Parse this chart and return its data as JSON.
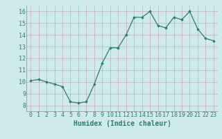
{
  "x": [
    0,
    1,
    2,
    3,
    4,
    5,
    6,
    7,
    8,
    9,
    10,
    11,
    12,
    13,
    14,
    15,
    16,
    17,
    18,
    19,
    20,
    21,
    22,
    23
  ],
  "y": [
    10.1,
    10.2,
    10.0,
    9.8,
    9.6,
    8.3,
    8.2,
    8.3,
    9.8,
    11.6,
    12.9,
    12.9,
    14.0,
    15.5,
    15.5,
    16.0,
    14.8,
    14.6,
    15.5,
    15.3,
    16.0,
    14.5,
    13.7,
    13.5
  ],
  "xlabel": "Humidex (Indice chaleur)",
  "xlim": [
    -0.5,
    23.5
  ],
  "ylim": [
    7.5,
    16.5
  ],
  "yticks": [
    8,
    9,
    10,
    11,
    12,
    13,
    14,
    15,
    16
  ],
  "xticks": [
    0,
    1,
    2,
    3,
    4,
    5,
    6,
    7,
    8,
    9,
    10,
    11,
    12,
    13,
    14,
    15,
    16,
    17,
    18,
    19,
    20,
    21,
    22,
    23
  ],
  "line_color": "#2d7d6e",
  "marker": "D",
  "marker_size": 1.8,
  "bg_color": "#ceeaea",
  "grid_color": "#c8a8b8",
  "xlabel_fontsize": 7,
  "tick_fontsize": 6
}
